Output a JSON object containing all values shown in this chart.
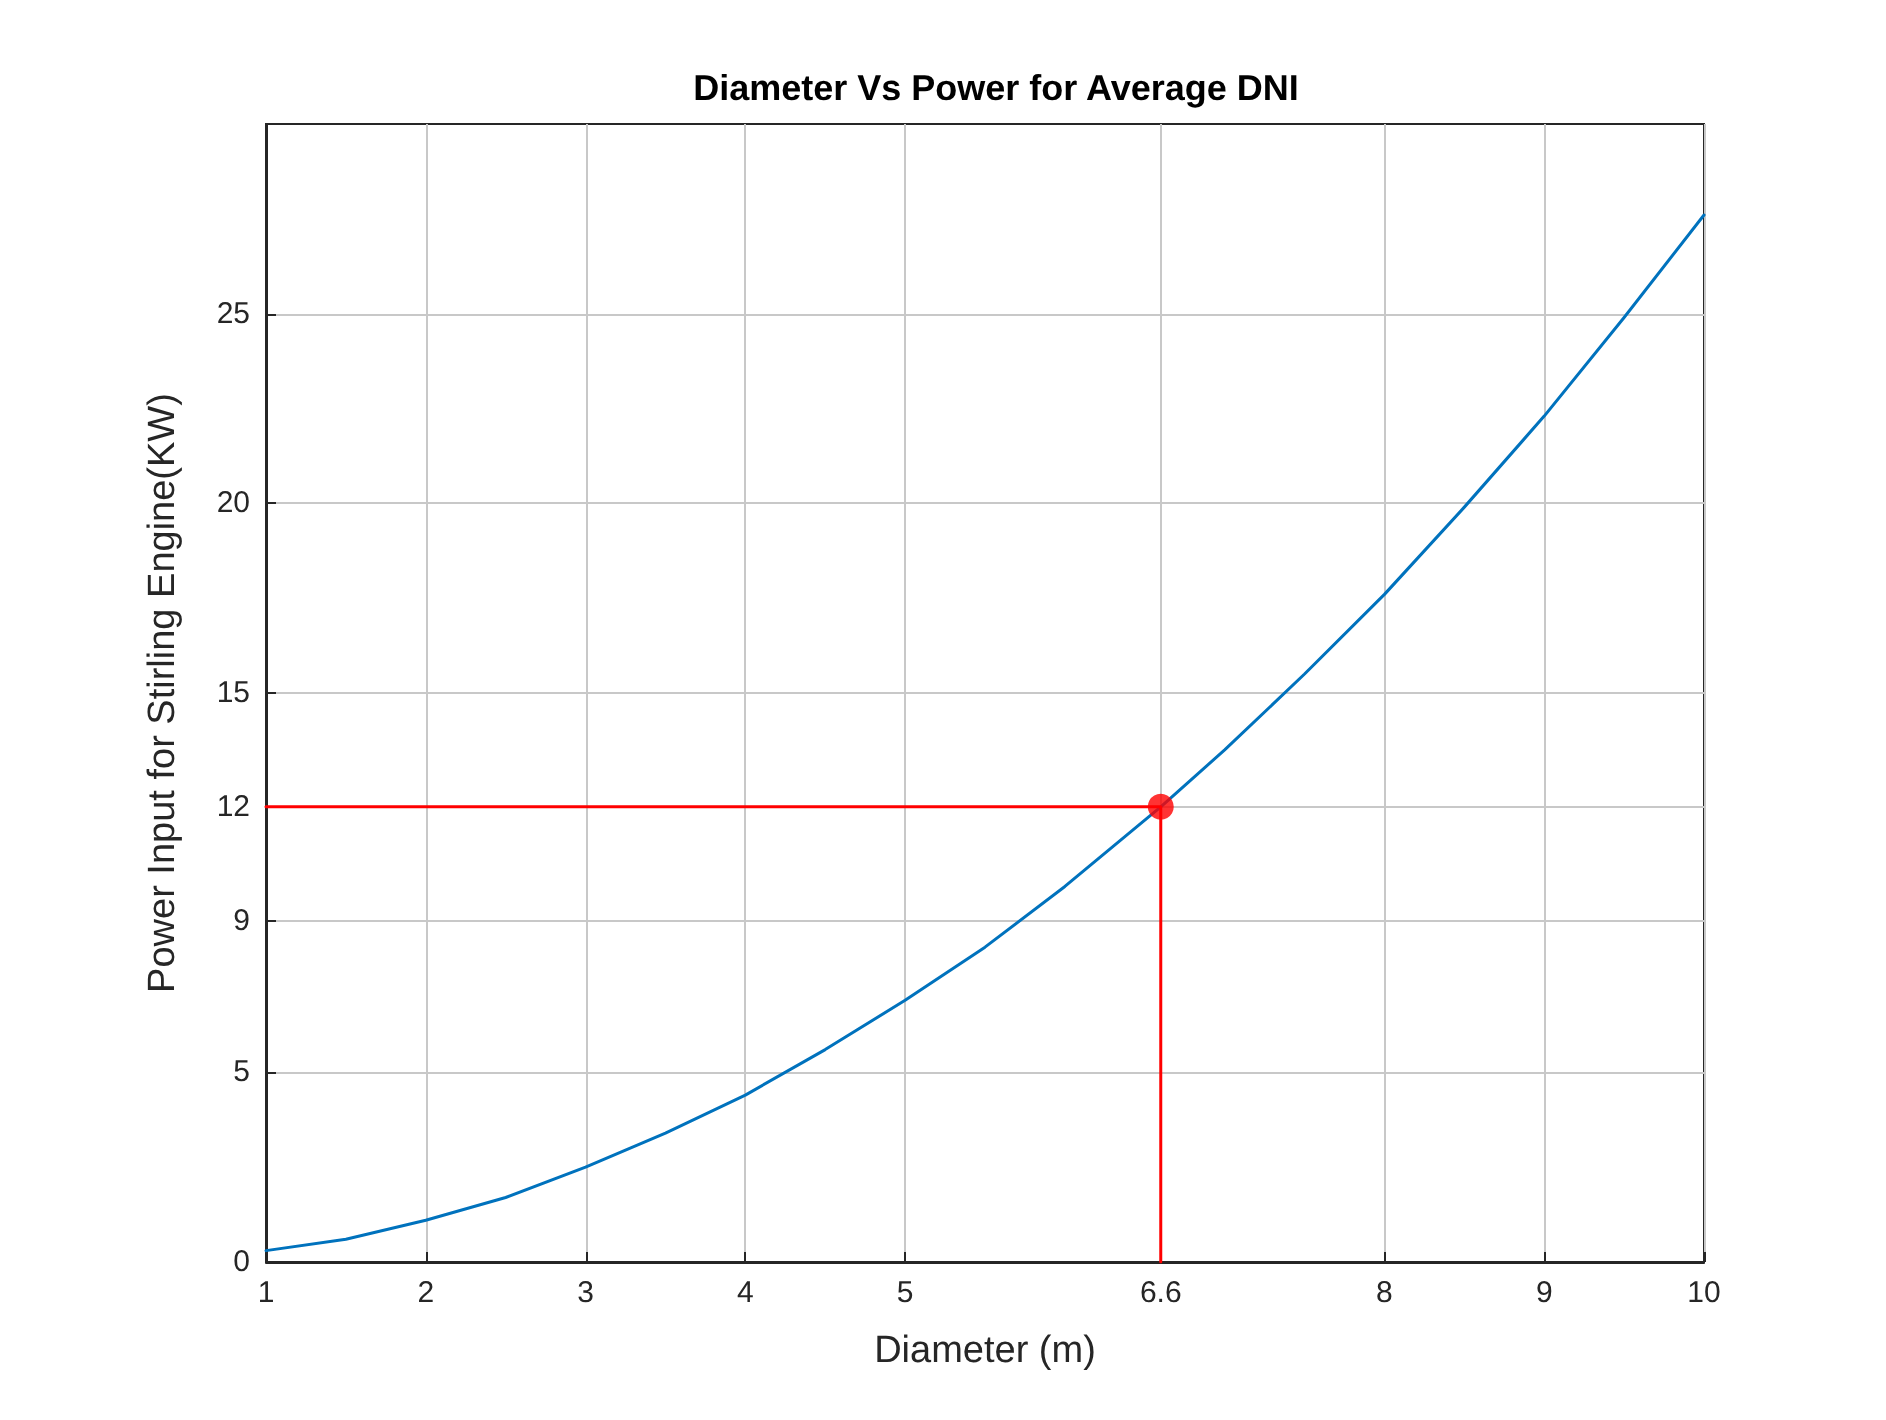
{
  "chart_data": {
    "type": "line",
    "title": "Diameter Vs Power for Average DNI",
    "xlabel": "Diameter (m)",
    "ylabel": "Power Input for Stirling Engine(KW)",
    "xlim": [
      1,
      10
    ],
    "ylim": [
      0,
      30
    ],
    "xticks": [
      1,
      2,
      3,
      4,
      5,
      6.6,
      8,
      9,
      10
    ],
    "yticks": [
      0,
      5,
      9,
      12,
      15,
      20,
      25
    ],
    "grid": true,
    "series": [
      {
        "type": "line",
        "color": "#0072bd",
        "marker": "none",
        "x": [
          1,
          1.5,
          2,
          2.5,
          3,
          3.5,
          4,
          4.5,
          5,
          5.5,
          6,
          6.6,
          7,
          7.5,
          8,
          8.5,
          9,
          9.5,
          10
        ],
        "values": [
          0.3,
          0.6,
          1.1,
          1.7,
          2.5,
          3.4,
          4.4,
          5.6,
          6.9,
          8.3,
          9.9,
          12,
          13.5,
          15.5,
          17.6,
          19.9,
          22.3,
          24.9,
          27.6
        ]
      },
      {
        "type": "line",
        "color": "#ff0000",
        "marker": "none",
        "x": [
          1,
          6.6,
          6.6
        ],
        "values": [
          12,
          12,
          0
        ]
      },
      {
        "type": "scatter",
        "color": "#ff0000",
        "marker": "circle",
        "x": [
          6.6
        ],
        "values": [
          12
        ]
      }
    ]
  }
}
